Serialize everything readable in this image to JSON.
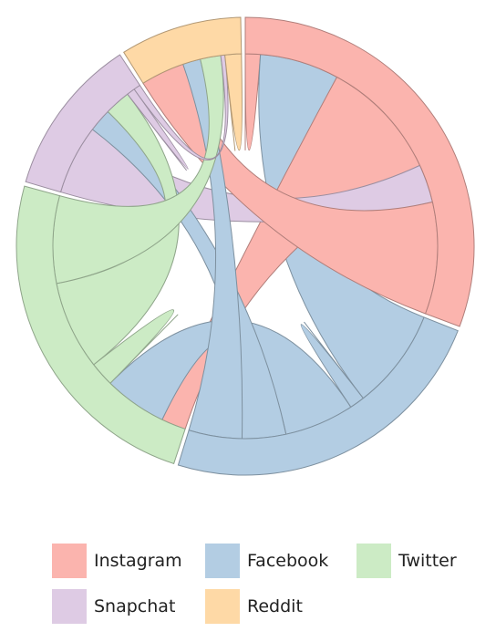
{
  "chart_data": {
    "type": "chord",
    "title": "",
    "groups": [
      "Instagram",
      "Facebook",
      "Twitter",
      "Snapchat",
      "Reddit"
    ],
    "colors": [
      "#fbb4ae",
      "#b3cde3",
      "#ccebc5",
      "#decbe4",
      "#fed9a6"
    ],
    "matrix": [
      [
        11,
        58,
        89,
        28,
        82
      ],
      [
        74,
        11,
        51,
        32,
        39
      ],
      [
        18,
        46,
        18,
        65,
        64
      ],
      [
        51,
        17,
        19,
        6,
        5
      ],
      [
        32,
        13,
        15,
        3,
        12
      ]
    ],
    "legend": [
      {
        "label": "Instagram",
        "color": "#fbb4ae"
      },
      {
        "label": "Facebook",
        "color": "#b3cde3"
      },
      {
        "label": "Twitter",
        "color": "#ccebc5"
      },
      {
        "label": "Snapchat",
        "color": "#decbe4"
      },
      {
        "label": "Reddit",
        "color": "#fed9a6"
      }
    ],
    "legend_position": "bottom"
  }
}
